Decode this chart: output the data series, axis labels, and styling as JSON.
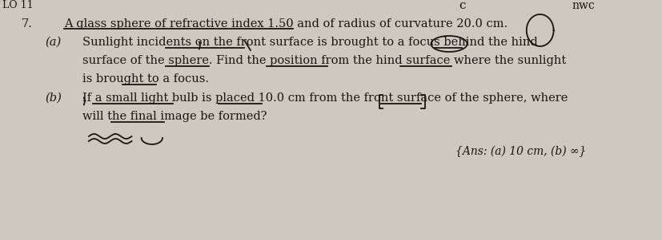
{
  "background_color": "#cdc8c0",
  "question_number": "7.",
  "main_text": "A glass sphere of refractive index 1.50 and of radius of curvature 20.0 cm.",
  "part_a_label": "(a)",
  "part_a_line1": "Sunlight incidents on the front surface is brought to a focus behind the hind",
  "part_a_line2": "surface of the sphere. Find the position from the hind surface where the sunlight",
  "part_a_line3": "is brought to a focus.",
  "part_b_label": "(b)",
  "part_b_line1": "If a small light bulb is placed 10.0 cm from the front surface of the sphere, where",
  "part_b_line2": "will the final image be formed?",
  "ans_text": "{Ans: (a) 10 cm, (b) ∞}",
  "top_left_text": "LO 11",
  "font_size_main": 10.5,
  "font_size_ans": 10.0,
  "text_color": "#1a1510",
  "font_family": "DejaVu Serif"
}
